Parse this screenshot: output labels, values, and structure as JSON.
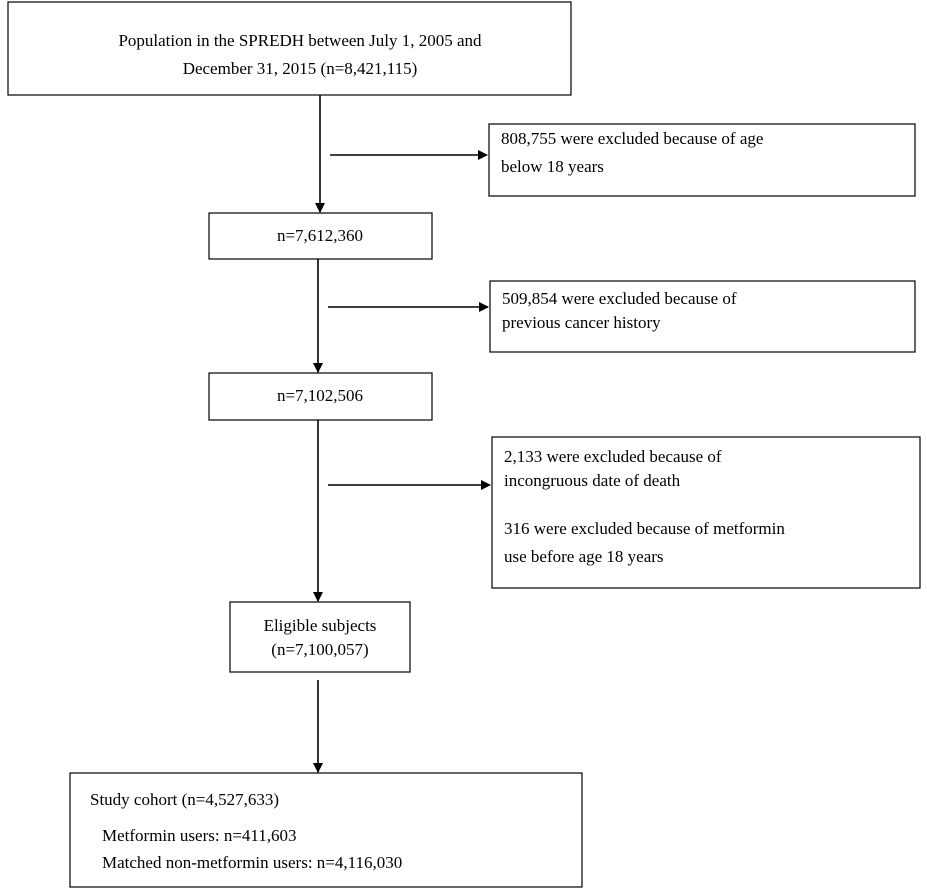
{
  "nodes": [
    {
      "lines": [
        "Population in the SPREDH between July 1, 2005 and",
        "December 31, 2015 (n=8,421,115)"
      ]
    },
    {
      "lines": [
        "n=7,612,360"
      ]
    },
    {
      "lines": [
        "n=7,102,506"
      ]
    },
    {
      "lines": [
        "Eligible subjects",
        "(n=7,100,057)"
      ]
    },
    {
      "lines": [
        "Study cohort (n=4,527,633)",
        "Metformin users: n=411,603",
        "Matched non-metformin users: n=4,116,030"
      ]
    }
  ],
  "exclusions": [
    {
      "lines": [
        "808,755 were excluded because of age",
        "below 18 years"
      ]
    },
    {
      "lines": [
        "509,854 were excluded because of",
        "previous cancer history"
      ]
    },
    {
      "lines": [
        "2,133 were excluded because of",
        "incongruous date of death",
        "316 were excluded because of metformin",
        "use before age 18 years"
      ]
    }
  ]
}
